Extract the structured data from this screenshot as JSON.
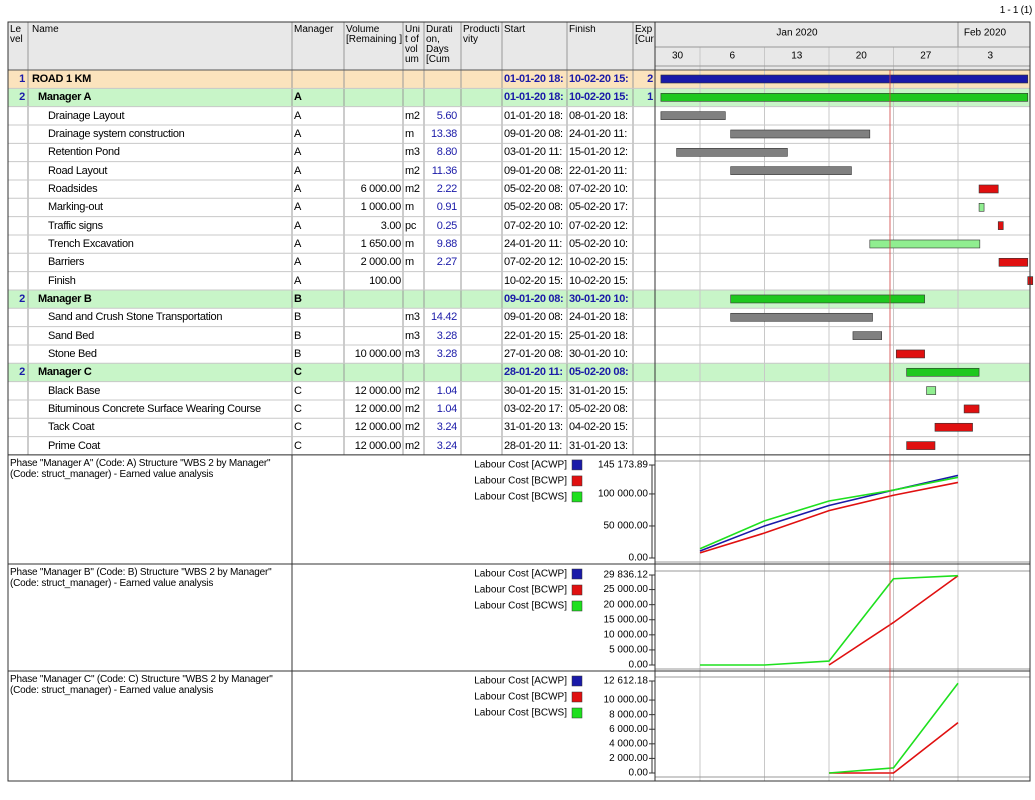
{
  "page_number": "1 - 1 (1)",
  "columns": [
    {
      "key": "level",
      "label": "Le vel"
    },
    {
      "key": "name",
      "label": "Name"
    },
    {
      "key": "manager",
      "label": "Manager"
    },
    {
      "key": "volume",
      "label": "Volume [Remaining ]"
    },
    {
      "key": "unit",
      "label": "Uni t of vol um"
    },
    {
      "key": "duration",
      "label": "Durati on, Days [Cum"
    },
    {
      "key": "productivity",
      "label": "Producti vity"
    },
    {
      "key": "start",
      "label": "Start"
    },
    {
      "key": "finish",
      "label": "Finish"
    },
    {
      "key": "exp",
      "label": "Exp [Cur"
    }
  ],
  "timeline": {
    "months": [
      "Jan 2020",
      "Feb 2020"
    ],
    "weeks": [
      "30",
      "6",
      "13",
      "20",
      "27",
      "3"
    ]
  },
  "rows": [
    {
      "level": "1",
      "name": "ROAD 1 KM",
      "start": "01-01-20 18:",
      "finish": "10-02-20 15:",
      "exp": "2",
      "bar_color": "#1a1aa8"
    },
    {
      "level": "2",
      "name": "Manager A",
      "manager": "A",
      "start": "01-01-20 18:",
      "finish": "10-02-20 15:",
      "exp": "1",
      "bar_color": "#1ec81e"
    },
    {
      "name": "Drainage Layout",
      "manager": "A",
      "unit": "m2",
      "duration": "5.60",
      "start": "01-01-20 18:",
      "finish": "08-01-20 18:",
      "bar_color": "#808080"
    },
    {
      "name": "Drainage system construction",
      "manager": "A",
      "unit": "m",
      "duration": "13.38",
      "start": "09-01-20 08:",
      "finish": "24-01-20 11:",
      "bar_color": "#808080"
    },
    {
      "name": "Retention Pond",
      "manager": "A",
      "unit": "m3",
      "duration": "8.80",
      "start": "03-01-20 11:",
      "finish": "15-01-20 12:",
      "bar_color": "#808080"
    },
    {
      "name": "Road Layout",
      "manager": "A",
      "unit": "m2",
      "duration": "11.36",
      "start": "09-01-20 08:",
      "finish": "22-01-20 11:",
      "bar_color": "#808080"
    },
    {
      "name": "Roadsides",
      "manager": "A",
      "volume": "6 000.00",
      "unit": "m2",
      "duration": "2.22",
      "start": "05-02-20 08:",
      "finish": "07-02-20 10:",
      "bar_color": "#e01010"
    },
    {
      "name": "Marking-out",
      "manager": "A",
      "volume": "1 000.00",
      "unit": "m",
      "duration": "0.91",
      "start": "05-02-20 08:",
      "finish": "05-02-20 17:",
      "bar_color": "#90ee90"
    },
    {
      "name": "Traffic signs",
      "manager": "A",
      "volume": "3.00",
      "unit": "pc",
      "duration": "0.25",
      "start": "07-02-20 10:",
      "finish": "07-02-20 12:",
      "bar_color": "#e01010"
    },
    {
      "name": "Trench Excavation",
      "manager": "A",
      "volume": "1 650.00",
      "unit": "m",
      "duration": "9.88",
      "start": "24-01-20 11:",
      "finish": "05-02-20 10:",
      "bar_color": "#90ee90"
    },
    {
      "name": "Barriers",
      "manager": "A",
      "volume": "2 000.00",
      "unit": "m",
      "duration": "2.27",
      "start": "07-02-20 12:",
      "finish": "10-02-20 15:",
      "bar_color": "#e01010"
    },
    {
      "name": "Finish",
      "manager": "A",
      "volume": "100.00",
      "start": "10-02-20 15:",
      "finish": "10-02-20 15:",
      "bar_color": "#e01010"
    },
    {
      "level": "2",
      "name": "Manager B",
      "manager": "B",
      "start": "09-01-20 08:",
      "finish": "30-01-20 10:",
      "bar_color": "#1ec81e"
    },
    {
      "name": "Sand and Crush Stone Transportation",
      "manager": "B",
      "unit": "m3",
      "duration": "14.42",
      "start": "09-01-20 08:",
      "finish": "24-01-20 18:",
      "bar_color": "#808080"
    },
    {
      "name": "Sand Bed",
      "manager": "B",
      "unit": "m3",
      "duration": "3.28",
      "start": "22-01-20 15:",
      "finish": "25-01-20 18:",
      "bar_color": "#808080"
    },
    {
      "name": "Stone Bed",
      "manager": "B",
      "volume": "10 000.00",
      "unit": "m3",
      "duration": "3.28",
      "start": "27-01-20 08:",
      "finish": "30-01-20 10:",
      "bar_color": "#e01010"
    },
    {
      "level": "2",
      "name": "Manager C",
      "manager": "C",
      "start": "28-01-20 11:",
      "finish": "05-02-20 08:",
      "bar_color": "#1ec81e"
    },
    {
      "name": "Black Base",
      "manager": "C",
      "volume": "12 000.00",
      "unit": "m2",
      "duration": "1.04",
      "start": "30-01-20 15:",
      "finish": "31-01-20 15:",
      "bar_color": "#90ee90"
    },
    {
      "name": "Bituminous Concrete Surface Wearing Course",
      "manager": "C",
      "volume": "12 000.00",
      "unit": "m2",
      "duration": "1.04",
      "start": "03-02-20 17:",
      "finish": "05-02-20 08:",
      "bar_color": "#e01010"
    },
    {
      "name": "Tack Coat",
      "manager": "C",
      "volume": "12 000.00",
      "unit": "m2",
      "duration": "3.24",
      "start": "31-01-20 13:",
      "finish": "04-02-20 15:",
      "bar_color": "#e01010"
    },
    {
      "name": "Prime Coat",
      "manager": "C",
      "volume": "12 000.00",
      "unit": "m2",
      "duration": "3.24",
      "start": "28-01-20 11:",
      "finish": "31-01-20 13:",
      "bar_color": "#e01010"
    }
  ],
  "chart_data": [
    {
      "type": "line",
      "title": "Phase \"Manager A\" (Code: A) Structure \"WBS 2 by Manager\" (Code: struct_manager) - Earned value analysis",
      "ylim": [
        0,
        145173.89
      ],
      "yticks": [
        {
          "value": 0,
          "label": "0.00"
        },
        {
          "value": 50000,
          "label": "50 000.00"
        },
        {
          "value": 100000,
          "label": "100 000.00"
        },
        {
          "value": 145173.89,
          "label": "145 173.89"
        }
      ],
      "series": [
        {
          "name": "Labour Cost [ACWP]",
          "color": "#1a1aa8",
          "values": [
            null,
            11000,
            50000,
            82000,
            106000,
            129000
          ]
        },
        {
          "name": "Labour Cost [BCWP]",
          "color": "#e01010",
          "values": [
            null,
            8000,
            39000,
            74000,
            98000,
            118000
          ]
        },
        {
          "name": "Labour Cost [BCWS]",
          "color": "#1ee01e",
          "values": [
            null,
            14500,
            58000,
            89000,
            106000,
            126000
          ]
        }
      ]
    },
    {
      "type": "line",
      "title": "Phase \"Manager B\" (Code: B) Structure \"WBS 2 by Manager\" (Code: struct_manager) - Earned value analysis",
      "ylim": [
        0,
        29836.12
      ],
      "yticks": [
        {
          "value": 0,
          "label": "0.00"
        },
        {
          "value": 5000,
          "label": "5 000.00"
        },
        {
          "value": 10000,
          "label": "10 000.00"
        },
        {
          "value": 15000,
          "label": "15 000.00"
        },
        {
          "value": 20000,
          "label": "20 000.00"
        },
        {
          "value": 25000,
          "label": "25 000.00"
        },
        {
          "value": 29836.12,
          "label": "29 836.12"
        }
      ],
      "series": [
        {
          "name": "Labour Cost [ACWP]",
          "color": "#1a1aa8",
          "values": [
            null,
            null,
            null,
            null,
            null,
            null
          ]
        },
        {
          "name": "Labour Cost [BCWP]",
          "color": "#e01010",
          "values": [
            null,
            null,
            null,
            0,
            14100,
            29600
          ]
        },
        {
          "name": "Labour Cost [BCWS]",
          "color": "#1ee01e",
          "values": [
            null,
            0,
            0,
            1300,
            28600,
            29600
          ]
        }
      ]
    },
    {
      "type": "line",
      "title": "Phase \"Manager C\" (Code: C) Structure \"WBS 2 by Manager\" (Code: struct_manager) - Earned value analysis",
      "ylim": [
        0,
        12612.18
      ],
      "yticks": [
        {
          "value": 0,
          "label": "0.00"
        },
        {
          "value": 2000,
          "label": "2 000.00"
        },
        {
          "value": 4000,
          "label": "4 000.00"
        },
        {
          "value": 6000,
          "label": "6 000.00"
        },
        {
          "value": 8000,
          "label": "8 000.00"
        },
        {
          "value": 10000,
          "label": "10 000.00"
        },
        {
          "value": 12612.18,
          "label": "12 612.18"
        }
      ],
      "series": [
        {
          "name": "Labour Cost [ACWP]",
          "color": "#1a1aa8",
          "values": [
            null,
            null,
            null,
            null,
            null,
            null
          ]
        },
        {
          "name": "Labour Cost [BCWP]",
          "color": "#e01010",
          "values": [
            null,
            null,
            null,
            0,
            0,
            6900
          ]
        },
        {
          "name": "Labour Cost [BCWS]",
          "color": "#1ee01e",
          "values": [
            null,
            null,
            null,
            0,
            700,
            12300
          ]
        }
      ]
    }
  ]
}
